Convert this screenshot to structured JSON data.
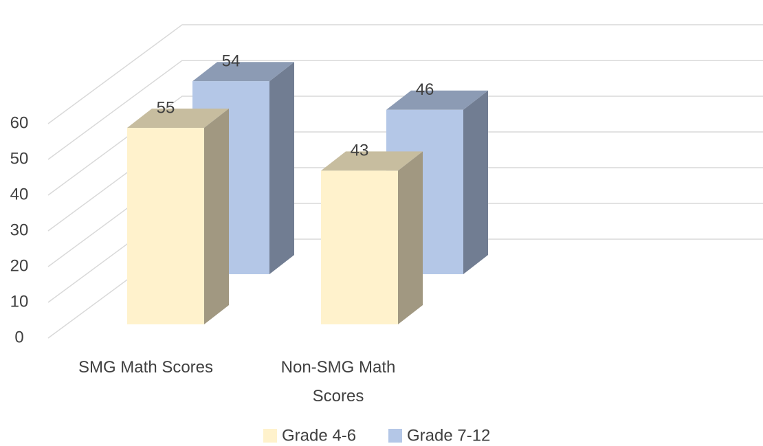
{
  "chart_data": {
    "type": "bar3d",
    "categories": [
      "SMG Math Scores",
      "Non-SMG Math Scores"
    ],
    "series": [
      {
        "name": "Grade 4-6",
        "color": "#fff2cc",
        "values": [
          55,
          43
        ]
      },
      {
        "name": "Grade 7-12",
        "color": "#b4c7e7",
        "values": [
          54,
          46
        ]
      }
    ],
    "ylim": [
      0,
      60
    ],
    "yticks": [
      0,
      10,
      20,
      30,
      40,
      50,
      60
    ],
    "grid": true,
    "legend": "bottom"
  }
}
